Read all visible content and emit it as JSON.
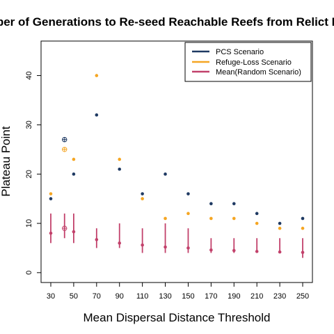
{
  "chart_data": {
    "type": "scatter",
    "title": "Number of Generations to Re-seed Reachable Reefs from Relict Reefs",
    "xlabel": "Mean Dispersal Distance Threshold",
    "ylabel": "Plateau Point",
    "x": [
      30,
      50,
      70,
      90,
      110,
      130,
      150,
      170,
      190,
      210,
      230,
      250
    ],
    "ylim": [
      -2,
      47
    ],
    "yticks": [
      0,
      10,
      20,
      30,
      40
    ],
    "legend_position": "top-right",
    "grid": false,
    "series": [
      {
        "name": "PCS Scenario",
        "color": "#1f3a63",
        "values": [
          15,
          20,
          32,
          21,
          16,
          20,
          16,
          14,
          14,
          12,
          10,
          11
        ]
      },
      {
        "name": "Refuge-Loss Scenario",
        "color": "#f5a623",
        "values": [
          16,
          23,
          40,
          23,
          15,
          11,
          12,
          11,
          11,
          10,
          9,
          9
        ]
      },
      {
        "name": "Mean(Random Scenario)",
        "color": "#c2416b",
        "values": [
          8,
          8.3,
          6.7,
          6,
          5.6,
          5.2,
          5,
          4.6,
          4.5,
          4.3,
          4.2,
          4.1
        ],
        "lower": [
          6,
          6,
          5,
          5,
          4,
          4,
          4,
          4,
          4,
          4,
          4,
          3
        ],
        "upper": [
          12,
          12,
          9,
          10,
          9,
          10,
          9,
          7,
          7,
          7,
          7,
          7
        ]
      }
    ],
    "extra_points": {
      "x": 42,
      "pcs": 27,
      "refuge": 25,
      "random_mean": 9,
      "random_lower": 7,
      "random_upper": 12
    }
  }
}
